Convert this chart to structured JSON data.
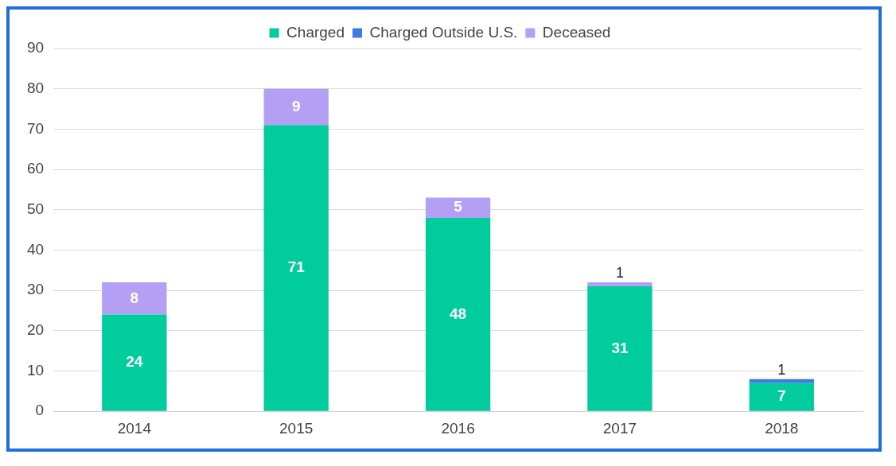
{
  "chart_data": {
    "type": "bar",
    "stacked": true,
    "categories": [
      "2014",
      "2015",
      "2016",
      "2017",
      "2018"
    ],
    "series": [
      {
        "name": "Charged",
        "color": "#00cc9e",
        "values": [
          24,
          71,
          48,
          31,
          7
        ],
        "value_labels": [
          "24",
          "71",
          "48",
          "31",
          "7"
        ]
      },
      {
        "name": "Charged Outside U.S.",
        "color": "#3f7ce0",
        "values": [
          0,
          0,
          0,
          0,
          1
        ],
        "value_labels": [
          null,
          null,
          null,
          null,
          "1"
        ]
      },
      {
        "name": "Deceased",
        "color": "#b3a0f5",
        "values": [
          8,
          9,
          5,
          1,
          0
        ],
        "value_labels": [
          "8",
          "9",
          "5",
          "1",
          null
        ]
      }
    ],
    "ylim": [
      0,
      90
    ],
    "yticks": [
      0,
      10,
      20,
      30,
      40,
      50,
      60,
      70,
      80,
      90
    ],
    "grid": "y",
    "legend": "top"
  }
}
